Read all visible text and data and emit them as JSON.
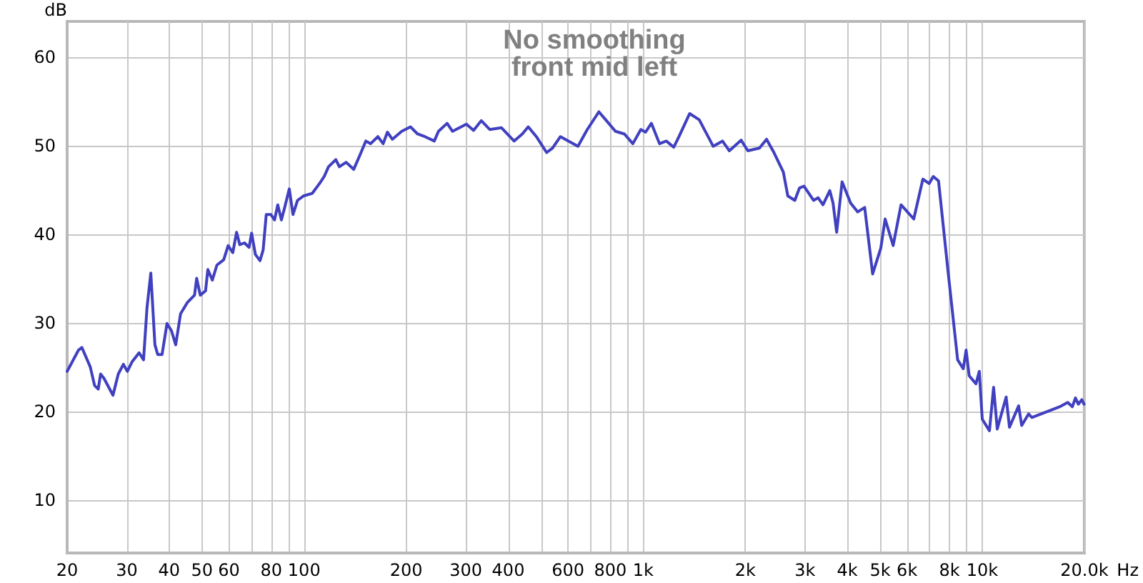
{
  "chart_data": {
    "type": "line",
    "title": "No smoothing",
    "subtitle": "front mid left",
    "ylabel": "dB",
    "log": "x",
    "grid": true,
    "marker": "none",
    "line_style": "solid",
    "xlim": [
      20,
      20000
    ],
    "ylim": [
      4,
      64
    ],
    "xticks": [
      20,
      30,
      40,
      50,
      60,
      {
        "value": 70,
        "label": null
      },
      80,
      {
        "value": 90,
        "label": null
      },
      100,
      200,
      300,
      400,
      {
        "value": 500,
        "label": null
      },
      600,
      {
        "value": 700,
        "label": null
      },
      800,
      {
        "value": 900,
        "label": null
      },
      {
        "value": 1000,
        "label": "1k"
      },
      {
        "value": 2000,
        "label": "2k"
      },
      {
        "value": 3000,
        "label": "3k"
      },
      {
        "value": 4000,
        "label": "4k"
      },
      {
        "value": 5000,
        "label": "5k"
      },
      {
        "value": 6000,
        "label": "6k"
      },
      {
        "value": 7000,
        "label": null
      },
      {
        "value": 8000,
        "label": "8k"
      },
      {
        "value": 9000,
        "label": null
      },
      {
        "value": 10000,
        "label": "10k"
      },
      {
        "value": 20000,
        "label": "20.0k"
      }
    ],
    "xlabel": "Hz",
    "yticks": [
      10,
      20,
      30,
      40,
      50,
      60
    ],
    "x": [
      20,
      21.6,
      22.1,
      23.4,
      24.1,
      24.7,
      25.1,
      25.7,
      27.3,
      28.3,
      29.3,
      30.1,
      31.1,
      32.6,
      33.6,
      34.4,
      35.3,
      36.3,
      37,
      38.1,
      39.4,
      40.6,
      41.8,
      43.2,
      45.3,
      47.5,
      48.2,
      49.4,
      51.2,
      52,
      53.6,
      55.3,
      57.9,
      59.7,
      61.6,
      63.2,
      64.6,
      66.7,
      68.8,
      70,
      71.8,
      74.1,
      75.7,
      77.3,
      79.8,
      81.8,
      83.6,
      85.7,
      87.6,
      90.4,
      92.7,
      95.6,
      99.5,
      105.7,
      111,
      114.6,
      118,
      124,
      127,
      133,
      140,
      146,
      152,
      157,
      165,
      171,
      176,
      182,
      194,
      206,
      216,
      227,
      242,
      249,
      264,
      274,
      301,
      316,
      333,
      353,
      382,
      416,
      440,
      458,
      484,
      519,
      540,
      570,
      602,
      642,
      684,
      740,
      775,
      828,
      880,
      932,
      984,
      1016,
      1057,
      1117,
      1170,
      1230,
      1275,
      1371,
      1463,
      1609,
      1713,
      1795,
      1944,
      2035,
      2202,
      2311,
      2430,
      2590,
      2670,
      2800,
      2890,
      2980,
      3180,
      3280,
      3390,
      3550,
      3630,
      3720,
      3860,
      4090,
      4290,
      4500,
      4750,
      5020,
      5170,
      5460,
      5760,
      6280,
      6680,
      6970,
      7170,
      7430,
      7900,
      8460,
      8790,
      8960,
      9150,
      9580,
      9800,
      10000,
      10500,
      10800,
      11070,
      11760,
      12030,
      12800,
      13070,
      13700,
      14000,
      16900,
      17870,
      18430,
      18830,
      19200,
      19660,
      19950
    ],
    "series": [
      {
        "color": "#4040c0",
        "values": [
          24.5,
          26.9,
          27.2,
          25.0,
          22.9,
          22.5,
          24.2,
          23.7,
          21.8,
          24.2,
          25.3,
          24.5,
          25.6,
          26.6,
          25.8,
          31.7,
          35.6,
          27.5,
          26.4,
          26.4,
          29.9,
          29.1,
          27.5,
          31.0,
          32.3,
          33.1,
          35.0,
          33.1,
          33.6,
          36.0,
          34.8,
          36.5,
          37.1,
          38.7,
          37.9,
          40.2,
          38.8,
          39.0,
          38.5,
          40.1,
          37.7,
          37.0,
          38.2,
          42.2,
          42.2,
          41.6,
          43.3,
          41.6,
          43.0,
          45.1,
          42.2,
          43.8,
          44.3,
          44.6,
          45.7,
          46.5,
          47.6,
          48.4,
          47.6,
          48.1,
          47.3,
          48.9,
          50.5,
          50.2,
          51.0,
          50.2,
          51.5,
          50.7,
          51.6,
          52.1,
          51.3,
          51.0,
          50.5,
          51.6,
          52.5,
          51.6,
          52.4,
          51.7,
          52.8,
          51.8,
          52.0,
          50.5,
          51.3,
          52.1,
          51.0,
          49.2,
          49.7,
          51.0,
          50.5,
          49.9,
          51.8,
          53.8,
          52.9,
          51.6,
          51.3,
          50.2,
          51.8,
          51.5,
          52.5,
          50.2,
          50.5,
          49.8,
          51.0,
          53.6,
          52.9,
          49.9,
          50.5,
          49.4,
          50.6,
          49.4,
          49.7,
          50.7,
          49.2,
          47.0,
          44.3,
          43.8,
          45.2,
          45.4,
          43.8,
          44.1,
          43.3,
          44.9,
          43.5,
          40.2,
          45.9,
          43.5,
          42.5,
          43.0,
          35.5,
          38.4,
          41.7,
          38.7,
          43.3,
          41.7,
          46.2,
          45.7,
          46.5,
          46.0,
          36.3,
          25.8,
          24.8,
          26.9,
          24.0,
          23.1,
          24.5,
          19.1,
          17.8,
          22.7,
          18.0,
          21.6,
          18.2,
          20.6,
          18.4,
          19.7,
          19.3,
          20.5,
          21.0,
          20.5,
          21.5,
          20.8,
          21.3,
          20.8
        ]
      }
    ]
  }
}
